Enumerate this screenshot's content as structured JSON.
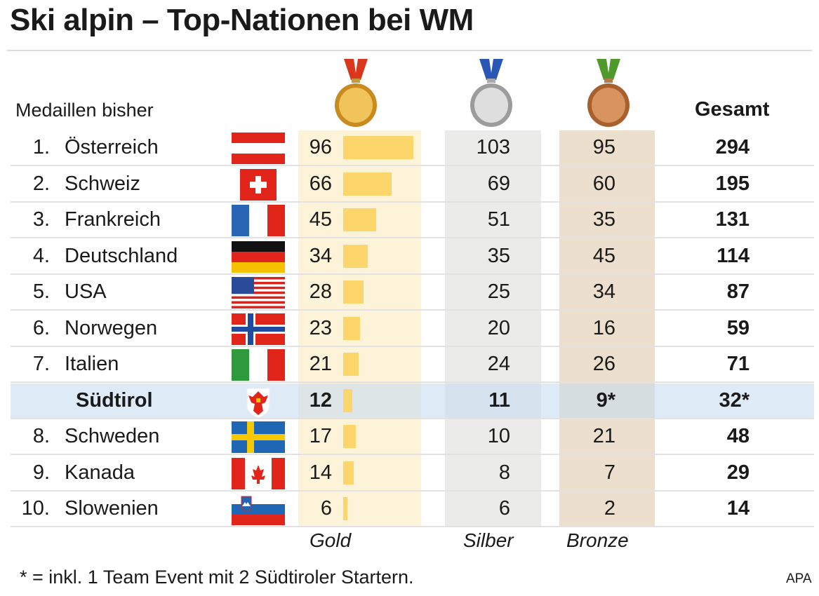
{
  "title": "Ski alpin – Top-Nationen bei WM",
  "header": {
    "medals_label": "Medaillen bisher",
    "total_label": "Gesamt"
  },
  "column_labels": {
    "gold": "Gold",
    "silver": "Silber",
    "bronze": "Bronze"
  },
  "colors": {
    "gold_bar": "#fdd66b",
    "gold_bg": "#fdf3d9",
    "silver_bg": "#ebebea",
    "bronze_bg": "#ecdfcd",
    "highlight_row": "#dde9f3"
  },
  "chart_data": {
    "type": "table",
    "columns": [
      "Rang",
      "Nation",
      "Gold",
      "Silber",
      "Bronze",
      "Gesamt"
    ],
    "rows": [
      {
        "rank": "1.",
        "name": "Österreich",
        "flag": "austria-flag",
        "gold": "96",
        "silver": "103",
        "bronze": "95",
        "total": "294"
      },
      {
        "rank": "2.",
        "name": "Schweiz",
        "flag": "switzerland-flag",
        "gold": "66",
        "silver": "69",
        "bronze": "60",
        "total": "195"
      },
      {
        "rank": "3.",
        "name": "Frankreich",
        "flag": "france-flag",
        "gold": "45",
        "silver": "51",
        "bronze": "35",
        "total": "131"
      },
      {
        "rank": "4.",
        "name": "Deutschland",
        "flag": "germany-flag",
        "gold": "34",
        "silver": "35",
        "bronze": "45",
        "total": "114"
      },
      {
        "rank": "5.",
        "name": "USA",
        "flag": "usa-flag",
        "gold": "28",
        "silver": "25",
        "bronze": "34",
        "total": "87"
      },
      {
        "rank": "6.",
        "name": "Norwegen",
        "flag": "norway-flag",
        "gold": "23",
        "silver": "20",
        "bronze": "16",
        "total": "59"
      },
      {
        "rank": "7.",
        "name": "Italien",
        "flag": "italy-flag",
        "gold": "21",
        "silver": "24",
        "bronze": "26",
        "total": "71"
      },
      {
        "rank": "",
        "name": "Südtirol",
        "flag": "suedtirol-coat-of-arms",
        "gold": "12",
        "silver": "11",
        "bronze": "9*",
        "total": "32*",
        "highlight": true
      },
      {
        "rank": "8.",
        "name": "Schweden",
        "flag": "sweden-flag",
        "gold": "17",
        "silver": "10",
        "bronze": "21",
        "total": "48"
      },
      {
        "rank": "9.",
        "name": "Kanada",
        "flag": "canada-flag",
        "gold": "14",
        "silver": "8",
        "bronze": "7",
        "total": "29"
      },
      {
        "rank": "10.",
        "name": "Slowenien",
        "flag": "slovenia-flag",
        "gold": "6",
        "silver": "6",
        "bronze": "2",
        "total": "14"
      }
    ]
  },
  "footnote": "* = inkl. 1 Team Event mit 2 Südtiroler Startern.",
  "source": "APA"
}
